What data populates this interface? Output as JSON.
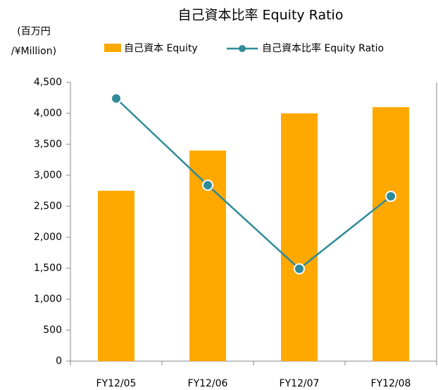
{
  "chart_data": {
    "type": "bar",
    "title": "自己資本比率  Equity Ratio",
    "y_label_line1": "(百万円",
    "y_label_line2": "/¥Million)",
    "categories": [
      "FY12/05",
      "FY12/06",
      "FY12/07",
      "FY12/08"
    ],
    "series": [
      {
        "name": "自己資本 Equity",
        "color": "#ffa800",
        "type": "bar",
        "values": [
          2750,
          3400,
          4000,
          4100
        ]
      },
      {
        "name": "自己資本比率 Equity Ratio",
        "color": "#2e8b9a",
        "type": "line",
        "values": [
          4240,
          2840,
          1490,
          2660
        ]
      }
    ],
    "ylim": [
      0,
      4500
    ],
    "yticks": [
      0,
      500,
      {
        "value": 1000,
        "label": "1,000"
      },
      {
        "value": 1500,
        "label": "1,500"
      },
      {
        "value": 2000,
        "label": "2,000"
      },
      {
        "value": 2500,
        "label": "2,500"
      },
      {
        "value": 3000,
        "label": "3,000"
      },
      {
        "value": 3500,
        "label": "3,500"
      },
      {
        "value": 4000,
        "label": "4,000"
      },
      {
        "value": 4500,
        "label": "4,500"
      }
    ],
    "grid": false
  }
}
